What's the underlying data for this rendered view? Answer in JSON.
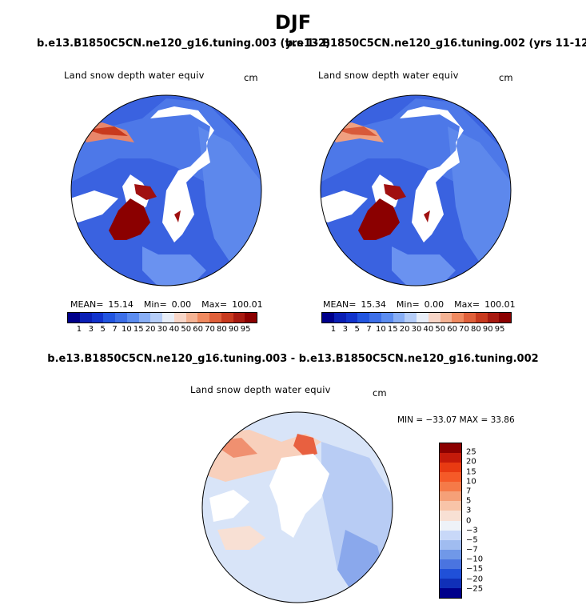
{
  "title": "DJF",
  "panels": [
    {
      "case": "b.e13.B1850C5CN.ne120_g16.tuning.003 (yrs 1-2)",
      "variable": "Land snow depth water equiv",
      "units": "cm",
      "stats": {
        "mean_label": "MEAN=",
        "mean": "15.14",
        "min_label": "Min=",
        "min": "0.00",
        "max_label": "Max=",
        "max": "100.01"
      }
    },
    {
      "case": "b.e13.B1850C5CN.ne120_g16.tuning.002 (yrs 11-12)",
      "variable": "Land snow depth water equiv",
      "units": "cm",
      "stats": {
        "mean_label": "MEAN=",
        "mean": "15.34",
        "min_label": "Min=",
        "min": "0.00",
        "max_label": "Max=",
        "max": "100.01"
      }
    }
  ],
  "colorbar": {
    "ticks": [
      "1",
      "3",
      "5",
      "7",
      "10",
      "15",
      "20",
      "30",
      "40",
      "50",
      "60",
      "70",
      "80",
      "90",
      "95"
    ],
    "colors": [
      "#00008b",
      "#0a1fb5",
      "#1133cc",
      "#2255e0",
      "#3d6fe8",
      "#5b8cf0",
      "#88aef5",
      "#b5cdf8",
      "#e8eef8",
      "#f8d6c8",
      "#f5b394",
      "#f08a60",
      "#e0603a",
      "#c83a1e",
      "#a81a10",
      "#8b0000"
    ]
  },
  "difference": {
    "title": "b.e13.B1850C5CN.ne120_g16.tuning.003 - b.e13.B1850C5CN.ne120_g16.tuning.002",
    "variable": "Land snow depth water equiv",
    "units": "cm",
    "min_max": "MIN = −33.07  MAX =  33.86",
    "ticks": [
      "25",
      "20",
      "15",
      "10",
      "7",
      "5",
      "3",
      "0",
      "−3",
      "−5",
      "−7",
      "−10",
      "−15",
      "−20",
      "−25"
    ],
    "colors": [
      "#8b0000",
      "#c41a0a",
      "#e83a12",
      "#f55a28",
      "#f57a48",
      "#f5a078",
      "#f8c4a8",
      "#f8e0d4",
      "#eef2f8",
      "#c8d8f8",
      "#a0bcf0",
      "#7098e8",
      "#4a74e0",
      "#2050d8",
      "#1030b8",
      "#00008b"
    ]
  }
}
